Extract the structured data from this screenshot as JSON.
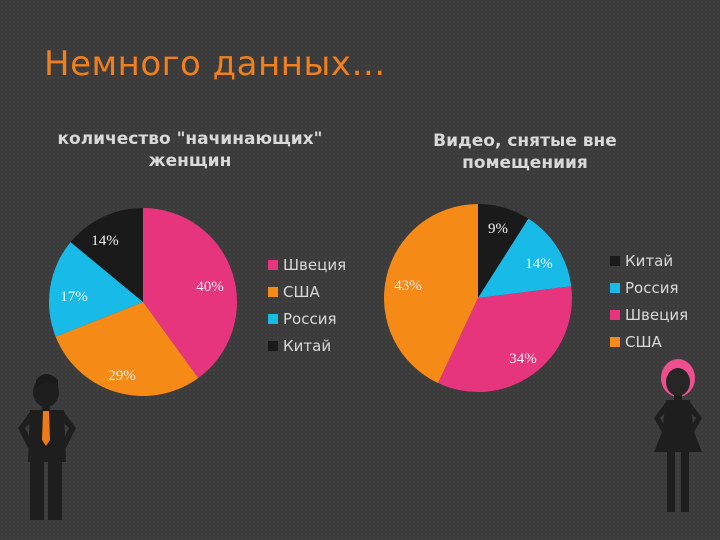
{
  "slide": {
    "title": "Немного данных…"
  },
  "chart_data": [
    {
      "type": "pie",
      "title": "количество \"начинающих\"\nженщин",
      "categories": [
        "Швеция",
        "США",
        "Россия",
        "Китай"
      ],
      "values": [
        40,
        29,
        17,
        14
      ],
      "value_labels": [
        "40%",
        "29%",
        "17%",
        "14%"
      ],
      "colors": [
        "#e6357d",
        "#f58a16",
        "#18bbe8",
        "#1a1a1a"
      ],
      "legend": {
        "position": "right",
        "items": [
          "Швеция",
          "США",
          "Россия",
          "Китай"
        ]
      }
    },
    {
      "type": "pie",
      "title": "Видео, снятые вне\nпомещениия",
      "categories": [
        "Китай",
        "Россия",
        "Швеция",
        "США"
      ],
      "values": [
        9,
        14,
        34,
        43
      ],
      "value_labels": [
        "9%",
        "14%",
        "34%",
        "43%"
      ],
      "colors": [
        "#1a1a1a",
        "#18bbe8",
        "#e6357d",
        "#f58a16"
      ],
      "legend": {
        "position": "right",
        "items": [
          "Китай",
          "Россия",
          "Швеция",
          "США"
        ]
      }
    }
  ]
}
